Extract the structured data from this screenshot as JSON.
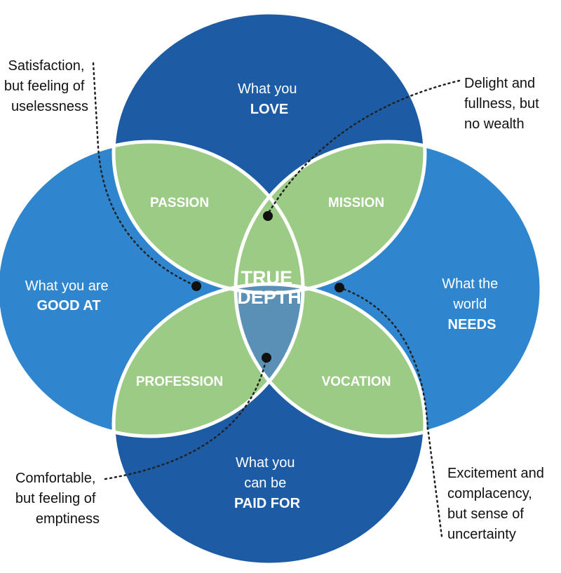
{
  "circles": {
    "top": {
      "line1": "What you",
      "line2": "LOVE"
    },
    "left": {
      "line1": "What you are",
      "line2": "GOOD AT"
    },
    "right": {
      "line1": "What the",
      "line2": "world",
      "line3": "NEEDS"
    },
    "bottom": {
      "line1": "What you",
      "line2": "can be",
      "line3": "PAID FOR"
    }
  },
  "overlaps": {
    "passion": "PASSION",
    "mission": "MISSION",
    "profession": "PROFESSION",
    "vocation": "VOCATION"
  },
  "center": {
    "line1": "TRUE",
    "line2": "DEPTH"
  },
  "annotations": {
    "top_left": [
      "Satisfaction,",
      "but feeling of",
      "uselessness"
    ],
    "top_right": [
      "Delight and",
      "fullness, but",
      "no wealth"
    ],
    "bottom_left": [
      "Comfortable,",
      "but feeling of",
      "emptiness"
    ],
    "bottom_right": [
      "Excitement and",
      "complacency,",
      "but sense of",
      "uncertainty"
    ]
  },
  "colors": {
    "dark_blue": "#1d5ba4",
    "medium_blue": "#2f86cf",
    "green": "#9ccb85",
    "triple_overlap": "#5a8fb6",
    "center": "#1f6db3"
  }
}
